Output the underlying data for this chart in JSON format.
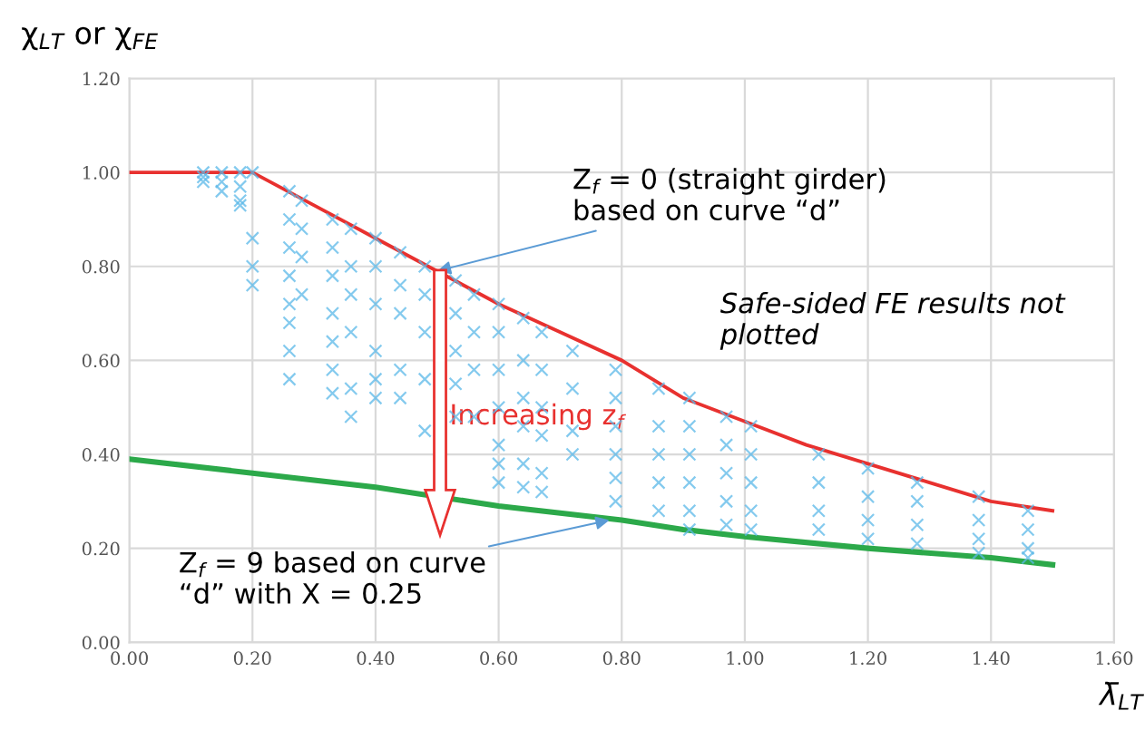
{
  "chart_data": {
    "type": "scatter",
    "xlabel": "λ̄$_{LT}$",
    "ylabel": "χ$_{LT}$ or χ$_{FE}$",
    "xlim": [
      0,
      1.6
    ],
    "ylim": [
      0,
      1.2
    ],
    "xticks": [
      {
        "value": 0,
        "label": "0.00"
      },
      {
        "value": 0.2,
        "label": "0.20"
      },
      {
        "value": 0.4,
        "label": "0.40"
      },
      {
        "value": 0.6,
        "label": "0.60"
      },
      {
        "value": 0.8,
        "label": "0.80"
      },
      {
        "value": 1.0,
        "label": "1.00"
      },
      {
        "value": 1.2,
        "label": "1.20"
      },
      {
        "value": 1.4,
        "label": "1.40"
      },
      {
        "value": 1.6,
        "label": "1.60"
      }
    ],
    "yticks": [
      {
        "value": 0,
        "label": "0.00"
      },
      {
        "value": 0.2,
        "label": "0.20"
      },
      {
        "value": 0.4,
        "label": "0.40"
      },
      {
        "value": 0.6,
        "label": "0.60"
      },
      {
        "value": 0.8,
        "label": "0.80"
      },
      {
        "value": 1.0,
        "label": "1.00"
      },
      {
        "value": 1.2,
        "label": "1.20"
      }
    ],
    "grid": true,
    "series": [
      {
        "marker": "cross",
        "color": "#5bb8e8",
        "x": [
          0.12,
          0.12,
          0.12,
          0.15,
          0.15,
          0.15,
          0.18,
          0.18,
          0.18,
          0.18,
          0.2,
          0.2,
          0.2,
          0.2,
          0.26,
          0.26,
          0.26,
          0.26,
          0.26,
          0.26,
          0.26,
          0.26,
          0.28,
          0.28,
          0.28,
          0.28,
          0.33,
          0.33,
          0.33,
          0.33,
          0.33,
          0.33,
          0.33,
          0.36,
          0.36,
          0.36,
          0.36,
          0.36,
          0.36,
          0.4,
          0.4,
          0.4,
          0.4,
          0.4,
          0.4,
          0.44,
          0.44,
          0.44,
          0.44,
          0.44,
          0.48,
          0.48,
          0.48,
          0.48,
          0.48,
          0.53,
          0.53,
          0.53,
          0.53,
          0.53,
          0.56,
          0.56,
          0.56,
          0.56,
          0.6,
          0.6,
          0.6,
          0.6,
          0.6,
          0.6,
          0.6,
          0.64,
          0.64,
          0.64,
          0.64,
          0.64,
          0.64,
          0.67,
          0.67,
          0.67,
          0.67,
          0.67,
          0.67,
          0.72,
          0.72,
          0.72,
          0.72,
          0.79,
          0.79,
          0.79,
          0.79,
          0.79,
          0.79,
          0.86,
          0.86,
          0.86,
          0.86,
          0.86,
          0.91,
          0.91,
          0.91,
          0.91,
          0.91,
          0.91,
          0.97,
          0.97,
          0.97,
          0.97,
          0.97,
          1.01,
          1.01,
          1.01,
          1.01,
          1.01,
          1.12,
          1.12,
          1.12,
          1.12,
          1.2,
          1.2,
          1.2,
          1.2,
          1.28,
          1.28,
          1.28,
          1.28,
          1.38,
          1.38,
          1.38,
          1.38,
          1.46,
          1.46,
          1.46,
          1.46
        ],
        "values": [
          1.0,
          0.99,
          0.98,
          1.0,
          0.98,
          0.96,
          1.0,
          0.97,
          0.94,
          0.93,
          1.0,
          0.86,
          0.8,
          0.76,
          0.96,
          0.9,
          0.84,
          0.78,
          0.72,
          0.68,
          0.62,
          0.56,
          0.94,
          0.88,
          0.82,
          0.74,
          0.9,
          0.84,
          0.78,
          0.7,
          0.64,
          0.58,
          0.53,
          0.88,
          0.8,
          0.74,
          0.66,
          0.54,
          0.48,
          0.86,
          0.8,
          0.72,
          0.62,
          0.56,
          0.52,
          0.83,
          0.76,
          0.7,
          0.58,
          0.52,
          0.8,
          0.74,
          0.66,
          0.56,
          0.45,
          0.77,
          0.7,
          0.62,
          0.55,
          0.48,
          0.74,
          0.66,
          0.58,
          0.48,
          0.72,
          0.66,
          0.58,
          0.5,
          0.42,
          0.38,
          0.34,
          0.69,
          0.6,
          0.52,
          0.46,
          0.38,
          0.33,
          0.66,
          0.58,
          0.5,
          0.44,
          0.36,
          0.32,
          0.62,
          0.54,
          0.45,
          0.4,
          0.58,
          0.52,
          0.46,
          0.4,
          0.35,
          0.3,
          0.54,
          0.46,
          0.4,
          0.34,
          0.28,
          0.52,
          0.46,
          0.4,
          0.34,
          0.28,
          0.24,
          0.48,
          0.42,
          0.36,
          0.3,
          0.25,
          0.46,
          0.4,
          0.34,
          0.28,
          0.24,
          0.4,
          0.34,
          0.28,
          0.24,
          0.37,
          0.31,
          0.26,
          0.22,
          0.34,
          0.3,
          0.25,
          0.21,
          0.31,
          0.26,
          0.22,
          0.19,
          0.28,
          0.24,
          0.2,
          0.18
        ]
      },
      {
        "type": "line",
        "color": "#e8312f",
        "x": [
          0,
          0.2,
          0.3,
          0.4,
          0.5,
          0.6,
          0.7,
          0.8,
          0.9,
          1.0,
          1.1,
          1.2,
          1.3,
          1.4,
          1.5
        ],
        "values": [
          1.0,
          1.0,
          0.93,
          0.86,
          0.79,
          0.72,
          0.66,
          0.6,
          0.52,
          0.47,
          0.42,
          0.38,
          0.34,
          0.3,
          0.28
        ]
      },
      {
        "type": "line",
        "color": "#2ca94a",
        "x": [
          0,
          0.2,
          0.4,
          0.6,
          0.8,
          0.9,
          1.0,
          1.2,
          1.4,
          1.5
        ],
        "values": [
          0.39,
          0.36,
          0.33,
          0.29,
          0.26,
          0.24,
          0.225,
          0.2,
          0.18,
          0.165
        ]
      }
    ],
    "annotations": [
      {
        "text": "Z$_{f}$ = 0 (straight girder)\nbased on curve “d”",
        "x": 0.5,
        "y": 0.79
      },
      {
        "text": "Z$_{f}$ = 9 based on curve\n“d” with X = 0.25",
        "x": 0.78,
        "y": 0.26
      },
      "Safe-sided FE results not\nplotted",
      "Increasing z$_{f}$"
    ]
  }
}
